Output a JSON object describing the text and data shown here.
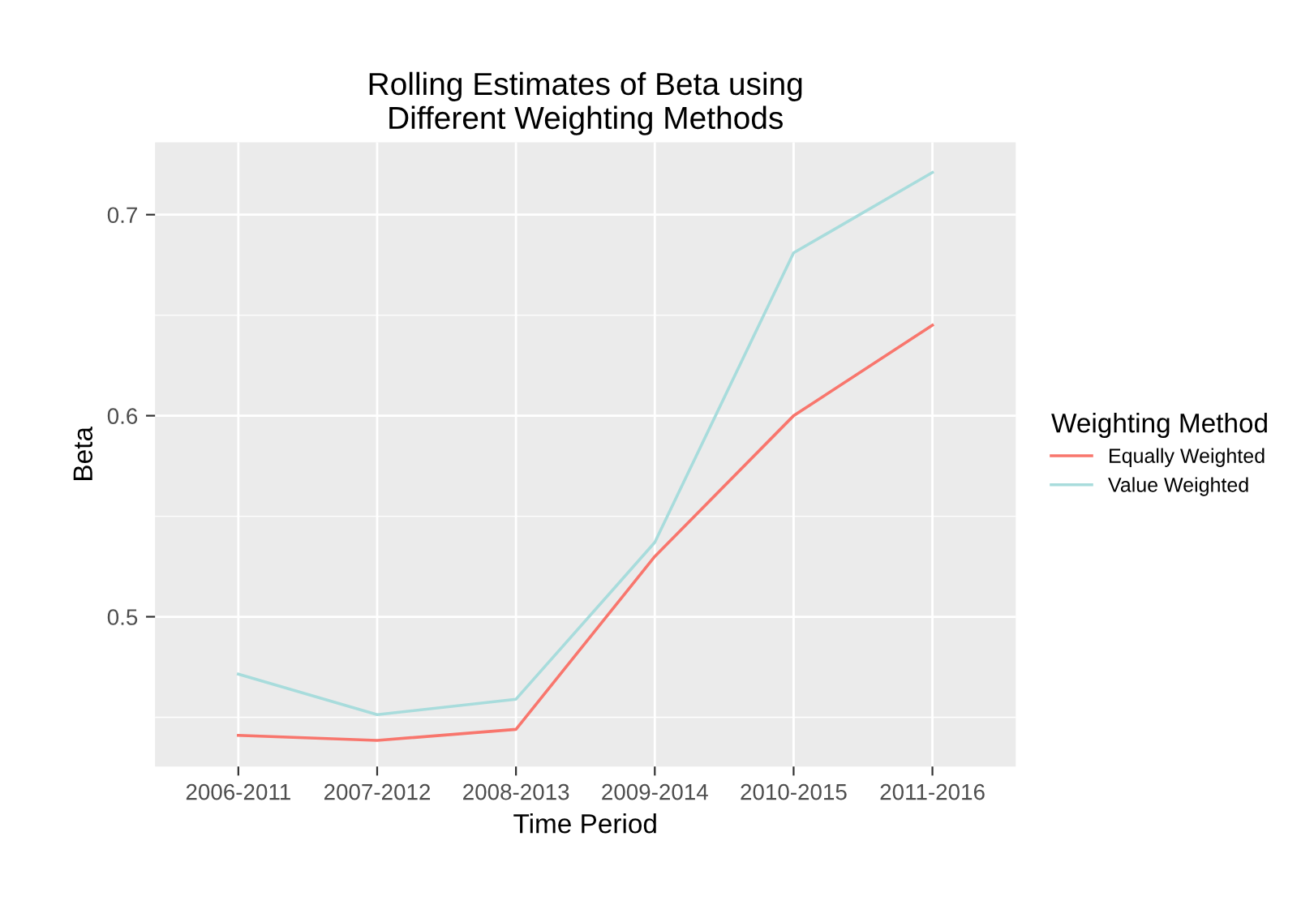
{
  "chart_data": {
    "type": "line",
    "title": "Rolling Estimates of Beta using\nDifferent Weighting Methods",
    "xlabel": "Time Period",
    "ylabel": "Beta",
    "legend_title": "Weighting Method",
    "categories": [
      "2006-2011",
      "2007-2012",
      "2008-2013",
      "2009-2014",
      "2010-2015",
      "2011-2016"
    ],
    "series": [
      {
        "name": "Equally Weighted",
        "color": "#f8766d",
        "values": [
          0.441,
          0.4385,
          0.444,
          0.53,
          0.6,
          0.645
        ]
      },
      {
        "name": "Value Weighted",
        "color": "#a8dcdc",
        "values": [
          0.4715,
          0.4513,
          0.459,
          0.537,
          0.681,
          0.721
        ]
      }
    ],
    "ylim": [
      0.4255,
      0.736
    ],
    "yticks": [
      0.5,
      0.6,
      0.7
    ],
    "grid": true,
    "legend": "right",
    "marker": "none",
    "line_style": "solid"
  }
}
